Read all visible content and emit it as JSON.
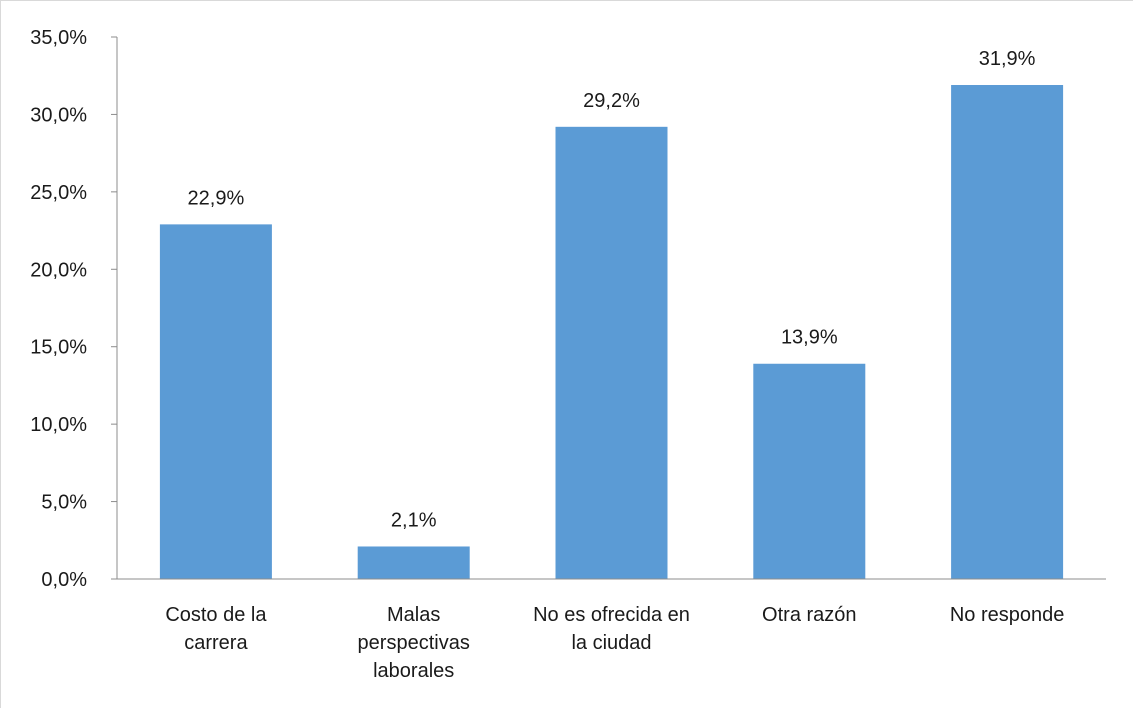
{
  "chart_data": {
    "type": "bar",
    "categories": [
      [
        "Costo de la",
        "carrera"
      ],
      [
        "Malas",
        "perspectivas",
        "laborales"
      ],
      [
        "No es ofrecida en",
        "la ciudad"
      ],
      [
        "Otra razón"
      ],
      [
        "No responde"
      ]
    ],
    "values": [
      22.9,
      2.1,
      29.2,
      13.9,
      31.9
    ],
    "data_labels": [
      "22,9%",
      "2,1%",
      "29,2%",
      "13,9%",
      "31,9%"
    ],
    "ylim": [
      0,
      35
    ],
    "yticks": [
      {
        "value": 0,
        "label": "0,0%"
      },
      {
        "value": 5,
        "label": "5,0%"
      },
      {
        "value": 10,
        "label": "10,0%"
      },
      {
        "value": 15,
        "label": "15,0%"
      },
      {
        "value": 20,
        "label": "20,0%"
      },
      {
        "value": 25,
        "label": "25,0%"
      },
      {
        "value": 30,
        "label": "30,0%"
      },
      {
        "value": 35,
        "label": "35,0%"
      }
    ],
    "grid": false,
    "legend": "none",
    "bar_color": "#5b9bd5",
    "axis_color": "#8c8c8c"
  }
}
